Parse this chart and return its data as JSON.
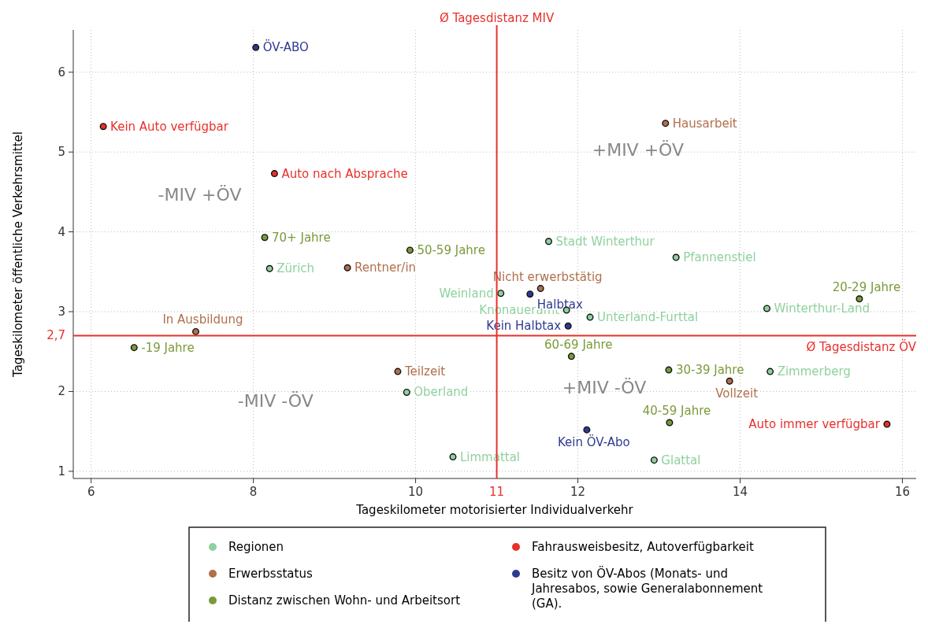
{
  "chart_data": {
    "type": "scatter",
    "xlabel": "Tageskilometer motorisierter Individualverkehr",
    "ylabel": "Tageskilometer öffentliche Verkehrsmittel",
    "xlim": [
      5.78,
      16.17
    ],
    "ylim": [
      0.91,
      6.53
    ],
    "xticks": [
      6,
      8,
      10,
      12,
      14,
      16
    ],
    "yticks": [
      1,
      2,
      3,
      4,
      5,
      6
    ],
    "grid": true,
    "legend": "bottom",
    "marker": "circle",
    "ref_lines": [
      {
        "axis": "x",
        "value": 11,
        "label": "Ø Tagesdistanz MIV",
        "color": "#e8302a"
      },
      {
        "axis": "y",
        "value": 2.7,
        "label": "Ø Tagesdistanz ÖV",
        "color": "#e8302a"
      }
    ],
    "annotations": [
      "-MIV +ÖV",
      "+MIV +ÖV",
      "-MIV -ÖV",
      "+MIV -ÖV",
      {
        "text": "11",
        "x": 11,
        "y": 0.91
      },
      {
        "text": "2,7",
        "x": 5.78,
        "y": 2.7
      },
      {
        "text": "Stadt Winterthur",
        "x": 11.64,
        "y": 3.88
      },
      {
        "text": "Pfannenstiel",
        "x": 13.21,
        "y": 3.68
      },
      {
        "text": "Zürich",
        "x": 8.2,
        "y": 3.54
      },
      {
        "text": "Weinland",
        "x": 11.05,
        "y": 3.23
      },
      {
        "text": "Knonaueramt",
        "x": 11.86,
        "y": 3.02
      },
      {
        "text": "Unterland-Furttal",
        "x": 12.15,
        "y": 2.93
      },
      {
        "text": "Winterthur-Land",
        "x": 14.33,
        "y": 3.04
      },
      {
        "text": "Zimmerberg",
        "x": 14.37,
        "y": 2.25
      },
      {
        "text": "Oberland",
        "x": 9.89,
        "y": 1.99
      },
      {
        "text": "Limmattal",
        "x": 10.46,
        "y": 1.18
      },
      {
        "text": "Glattal",
        "x": 12.94,
        "y": 1.14
      },
      {
        "text": "Hausarbeit",
        "x": 13.08,
        "y": 5.36
      },
      {
        "text": "Rentner/in",
        "x": 9.16,
        "y": 3.55
      },
      {
        "text": "Nicht erwerbstätig",
        "x": 11.54,
        "y": 3.29
      },
      {
        "text": "In Ausbildung",
        "x": 7.29,
        "y": 2.75
      },
      {
        "text": "Teilzeit",
        "x": 9.78,
        "y": 2.25
      },
      {
        "text": "Vollzeit",
        "x": 13.87,
        "y": 2.13
      },
      {
        "text": "70+ Jahre",
        "x": 8.14,
        "y": 3.93
      },
      {
        "text": "50-59 Jahre",
        "x": 9.93,
        "y": 3.77
      },
      {
        "text": "20-29 Jahre",
        "x": 15.47,
        "y": 3.16
      },
      {
        "text": "-19 Jahre",
        "x": 6.53,
        "y": 2.55
      },
      {
        "text": "60-69 Jahre",
        "x": 11.92,
        "y": 2.44
      },
      {
        "text": "30-39 Jahre",
        "x": 13.12,
        "y": 2.27
      },
      {
        "text": "40-59 Jahre",
        "x": 13.13,
        "y": 1.61
      },
      {
        "text": "Kein Auto verfügbar",
        "x": 6.15,
        "y": 5.32
      },
      {
        "text": "Auto nach Absprache",
        "x": 8.26,
        "y": 4.73
      },
      {
        "text": "Auto immer verfügbar",
        "x": 15.81,
        "y": 1.59
      },
      {
        "text": "ÖV-ABO",
        "x": 8.03,
        "y": 6.31
      },
      {
        "text": "Halbtax",
        "x": 11.41,
        "y": 3.22
      },
      {
        "text": "Kein Halbtax",
        "x": 11.88,
        "y": 2.82
      },
      {
        "text": "Kein ÖV-Abo",
        "x": 12.11,
        "y": 1.52
      }
    ],
    "series": [
      {
        "name": "Regionen",
        "color": "#8fd19e",
        "x": [
          11.64,
          13.21,
          8.2,
          11.05,
          11.86,
          12.15,
          14.33,
          14.37,
          9.89,
          10.46,
          12.94
        ],
        "values": [
          3.88,
          3.68,
          3.54,
          3.23,
          3.02,
          2.93,
          3.04,
          2.25,
          1.99,
          1.18,
          1.14
        ]
      },
      {
        "name": "Erwerbsstatus",
        "color": "#b06f4c",
        "x": [
          13.08,
          9.16,
          11.54,
          7.29,
          9.78,
          13.87
        ],
        "values": [
          5.36,
          3.55,
          3.29,
          2.75,
          2.25,
          2.13
        ]
      },
      {
        "name": "Distanz zwischen Wohn- und Arbeitsort",
        "color": "#7a9a3a",
        "x": [
          8.14,
          9.93,
          15.47,
          6.53,
          11.92,
          13.12,
          13.13
        ],
        "values": [
          3.93,
          3.77,
          3.16,
          2.55,
          2.44,
          2.27,
          1.61
        ]
      },
      {
        "name": "Fahrausweisbesitz, Autoverfügbarkeit",
        "color": "#e8302a",
        "x": [
          6.15,
          8.26,
          15.81
        ],
        "values": [
          5.32,
          4.73,
          1.59
        ]
      },
      {
        "name": "Besitz von ÖV-Abos (Monats- und Jahresabos, sowie Generalabonnement (GA).",
        "color": "#2e3a8f",
        "x": [
          8.03,
          11.41,
          11.88,
          12.11
        ],
        "values": [
          6.31,
          3.22,
          2.82,
          1.52
        ]
      }
    ]
  }
}
